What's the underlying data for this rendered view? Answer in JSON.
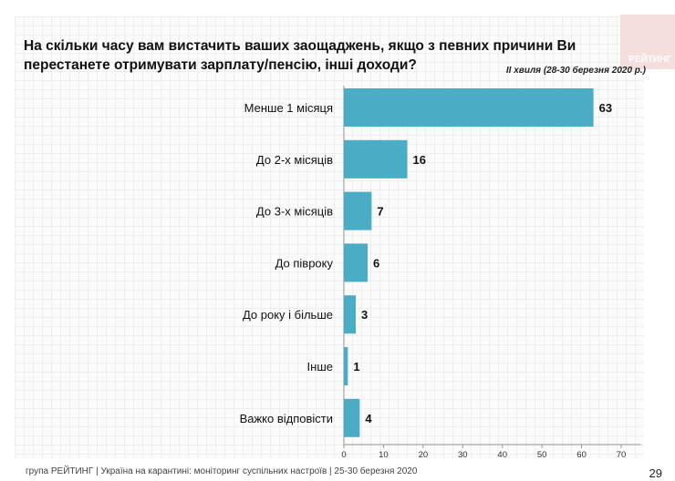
{
  "header": {
    "title": "На скільки часу вам вистачить ваших заощаджень, якщо з певних причини Ви перестанете отримувати зарплату/пенсію, інші доходи?",
    "wave": "ІІ хвиля (28-30 березня 2020 р.)",
    "logo_text": "РЕЙТИНГ"
  },
  "chart_data": {
    "type": "bar",
    "orientation": "horizontal",
    "categories": [
      "Менше 1 місяця",
      "До 2-х місяців",
      "До 3-х місяців",
      "До півроку",
      "До року і більше",
      "Інше",
      "Важко відповісти"
    ],
    "values": [
      63,
      16,
      7,
      6,
      3,
      1,
      4
    ],
    "xlim": [
      0,
      75
    ],
    "xticks": [
      "0",
      "10",
      "20",
      "30",
      "40",
      "50",
      "60",
      "70"
    ],
    "bar_color": "#4bacc6",
    "grid": false
  },
  "footer": {
    "text": "група РЕЙТИНГ  |  Україна на карантині: моніторинг суспільних настроїв  |  25-30 березня 2020",
    "page": "29"
  }
}
